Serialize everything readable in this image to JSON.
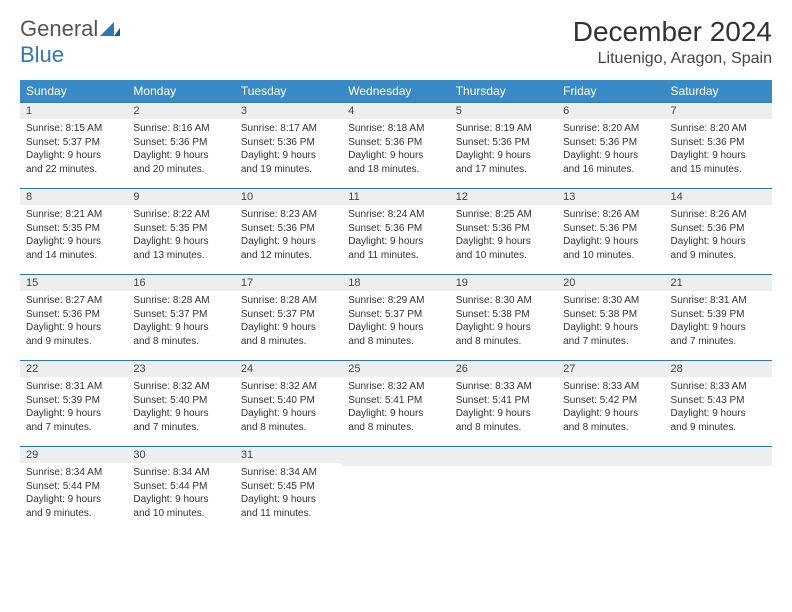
{
  "brand": {
    "name1": "General",
    "name2": "Blue"
  },
  "title": "December 2024",
  "location": "Lituenigo, Aragon, Spain",
  "colors": {
    "header_bg": "#3a8ac7",
    "header_text": "#ffffff",
    "row_divider": "#2f77b5",
    "daynum_bg": "#eceeef",
    "text": "#333333",
    "brand_gray": "#555555",
    "brand_blue": "#2f77b5"
  },
  "weekdays": [
    "Sunday",
    "Monday",
    "Tuesday",
    "Wednesday",
    "Thursday",
    "Friday",
    "Saturday"
  ],
  "weeks": [
    [
      {
        "n": "1",
        "sr": "Sunrise: 8:15 AM",
        "ss": "Sunset: 5:37 PM",
        "d1": "Daylight: 9 hours",
        "d2": "and 22 minutes."
      },
      {
        "n": "2",
        "sr": "Sunrise: 8:16 AM",
        "ss": "Sunset: 5:36 PM",
        "d1": "Daylight: 9 hours",
        "d2": "and 20 minutes."
      },
      {
        "n": "3",
        "sr": "Sunrise: 8:17 AM",
        "ss": "Sunset: 5:36 PM",
        "d1": "Daylight: 9 hours",
        "d2": "and 19 minutes."
      },
      {
        "n": "4",
        "sr": "Sunrise: 8:18 AM",
        "ss": "Sunset: 5:36 PM",
        "d1": "Daylight: 9 hours",
        "d2": "and 18 minutes."
      },
      {
        "n": "5",
        "sr": "Sunrise: 8:19 AM",
        "ss": "Sunset: 5:36 PM",
        "d1": "Daylight: 9 hours",
        "d2": "and 17 minutes."
      },
      {
        "n": "6",
        "sr": "Sunrise: 8:20 AM",
        "ss": "Sunset: 5:36 PM",
        "d1": "Daylight: 9 hours",
        "d2": "and 16 minutes."
      },
      {
        "n": "7",
        "sr": "Sunrise: 8:20 AM",
        "ss": "Sunset: 5:36 PM",
        "d1": "Daylight: 9 hours",
        "d2": "and 15 minutes."
      }
    ],
    [
      {
        "n": "8",
        "sr": "Sunrise: 8:21 AM",
        "ss": "Sunset: 5:35 PM",
        "d1": "Daylight: 9 hours",
        "d2": "and 14 minutes."
      },
      {
        "n": "9",
        "sr": "Sunrise: 8:22 AM",
        "ss": "Sunset: 5:35 PM",
        "d1": "Daylight: 9 hours",
        "d2": "and 13 minutes."
      },
      {
        "n": "10",
        "sr": "Sunrise: 8:23 AM",
        "ss": "Sunset: 5:36 PM",
        "d1": "Daylight: 9 hours",
        "d2": "and 12 minutes."
      },
      {
        "n": "11",
        "sr": "Sunrise: 8:24 AM",
        "ss": "Sunset: 5:36 PM",
        "d1": "Daylight: 9 hours",
        "d2": "and 11 minutes."
      },
      {
        "n": "12",
        "sr": "Sunrise: 8:25 AM",
        "ss": "Sunset: 5:36 PM",
        "d1": "Daylight: 9 hours",
        "d2": "and 10 minutes."
      },
      {
        "n": "13",
        "sr": "Sunrise: 8:26 AM",
        "ss": "Sunset: 5:36 PM",
        "d1": "Daylight: 9 hours",
        "d2": "and 10 minutes."
      },
      {
        "n": "14",
        "sr": "Sunrise: 8:26 AM",
        "ss": "Sunset: 5:36 PM",
        "d1": "Daylight: 9 hours",
        "d2": "and 9 minutes."
      }
    ],
    [
      {
        "n": "15",
        "sr": "Sunrise: 8:27 AM",
        "ss": "Sunset: 5:36 PM",
        "d1": "Daylight: 9 hours",
        "d2": "and 9 minutes."
      },
      {
        "n": "16",
        "sr": "Sunrise: 8:28 AM",
        "ss": "Sunset: 5:37 PM",
        "d1": "Daylight: 9 hours",
        "d2": "and 8 minutes."
      },
      {
        "n": "17",
        "sr": "Sunrise: 8:28 AM",
        "ss": "Sunset: 5:37 PM",
        "d1": "Daylight: 9 hours",
        "d2": "and 8 minutes."
      },
      {
        "n": "18",
        "sr": "Sunrise: 8:29 AM",
        "ss": "Sunset: 5:37 PM",
        "d1": "Daylight: 9 hours",
        "d2": "and 8 minutes."
      },
      {
        "n": "19",
        "sr": "Sunrise: 8:30 AM",
        "ss": "Sunset: 5:38 PM",
        "d1": "Daylight: 9 hours",
        "d2": "and 8 minutes."
      },
      {
        "n": "20",
        "sr": "Sunrise: 8:30 AM",
        "ss": "Sunset: 5:38 PM",
        "d1": "Daylight: 9 hours",
        "d2": "and 7 minutes."
      },
      {
        "n": "21",
        "sr": "Sunrise: 8:31 AM",
        "ss": "Sunset: 5:39 PM",
        "d1": "Daylight: 9 hours",
        "d2": "and 7 minutes."
      }
    ],
    [
      {
        "n": "22",
        "sr": "Sunrise: 8:31 AM",
        "ss": "Sunset: 5:39 PM",
        "d1": "Daylight: 9 hours",
        "d2": "and 7 minutes."
      },
      {
        "n": "23",
        "sr": "Sunrise: 8:32 AM",
        "ss": "Sunset: 5:40 PM",
        "d1": "Daylight: 9 hours",
        "d2": "and 7 minutes."
      },
      {
        "n": "24",
        "sr": "Sunrise: 8:32 AM",
        "ss": "Sunset: 5:40 PM",
        "d1": "Daylight: 9 hours",
        "d2": "and 8 minutes."
      },
      {
        "n": "25",
        "sr": "Sunrise: 8:32 AM",
        "ss": "Sunset: 5:41 PM",
        "d1": "Daylight: 9 hours",
        "d2": "and 8 minutes."
      },
      {
        "n": "26",
        "sr": "Sunrise: 8:33 AM",
        "ss": "Sunset: 5:41 PM",
        "d1": "Daylight: 9 hours",
        "d2": "and 8 minutes."
      },
      {
        "n": "27",
        "sr": "Sunrise: 8:33 AM",
        "ss": "Sunset: 5:42 PM",
        "d1": "Daylight: 9 hours",
        "d2": "and 8 minutes."
      },
      {
        "n": "28",
        "sr": "Sunrise: 8:33 AM",
        "ss": "Sunset: 5:43 PM",
        "d1": "Daylight: 9 hours",
        "d2": "and 9 minutes."
      }
    ],
    [
      {
        "n": "29",
        "sr": "Sunrise: 8:34 AM",
        "ss": "Sunset: 5:44 PM",
        "d1": "Daylight: 9 hours",
        "d2": "and 9 minutes."
      },
      {
        "n": "30",
        "sr": "Sunrise: 8:34 AM",
        "ss": "Sunset: 5:44 PM",
        "d1": "Daylight: 9 hours",
        "d2": "and 10 minutes."
      },
      {
        "n": "31",
        "sr": "Sunrise: 8:34 AM",
        "ss": "Sunset: 5:45 PM",
        "d1": "Daylight: 9 hours",
        "d2": "and 11 minutes."
      },
      {
        "empty": true
      },
      {
        "empty": true
      },
      {
        "empty": true
      },
      {
        "empty": true
      }
    ]
  ]
}
